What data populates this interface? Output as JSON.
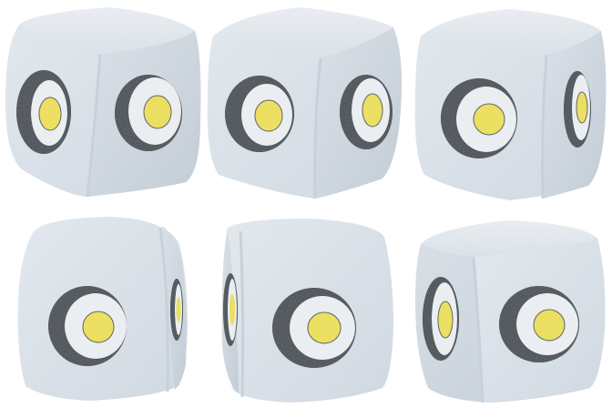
{
  "scene": {
    "background_color": "#ffffff",
    "cube_face_color": "#e2e8ee",
    "cube_shade_color": "#b9c3cd",
    "ring_black": "#050505",
    "ring_white": "#f2f4f6",
    "dot_yellow": "#f3e30a",
    "cubes": [
      {
        "name": "cube-1",
        "row": 1,
        "col": 1
      },
      {
        "name": "cube-2",
        "row": 1,
        "col": 2
      },
      {
        "name": "cube-3",
        "row": 1,
        "col": 3
      },
      {
        "name": "cube-4",
        "row": 2,
        "col": 1
      },
      {
        "name": "cube-5",
        "row": 2,
        "col": 2
      },
      {
        "name": "cube-6",
        "row": 2,
        "col": 3
      }
    ]
  }
}
